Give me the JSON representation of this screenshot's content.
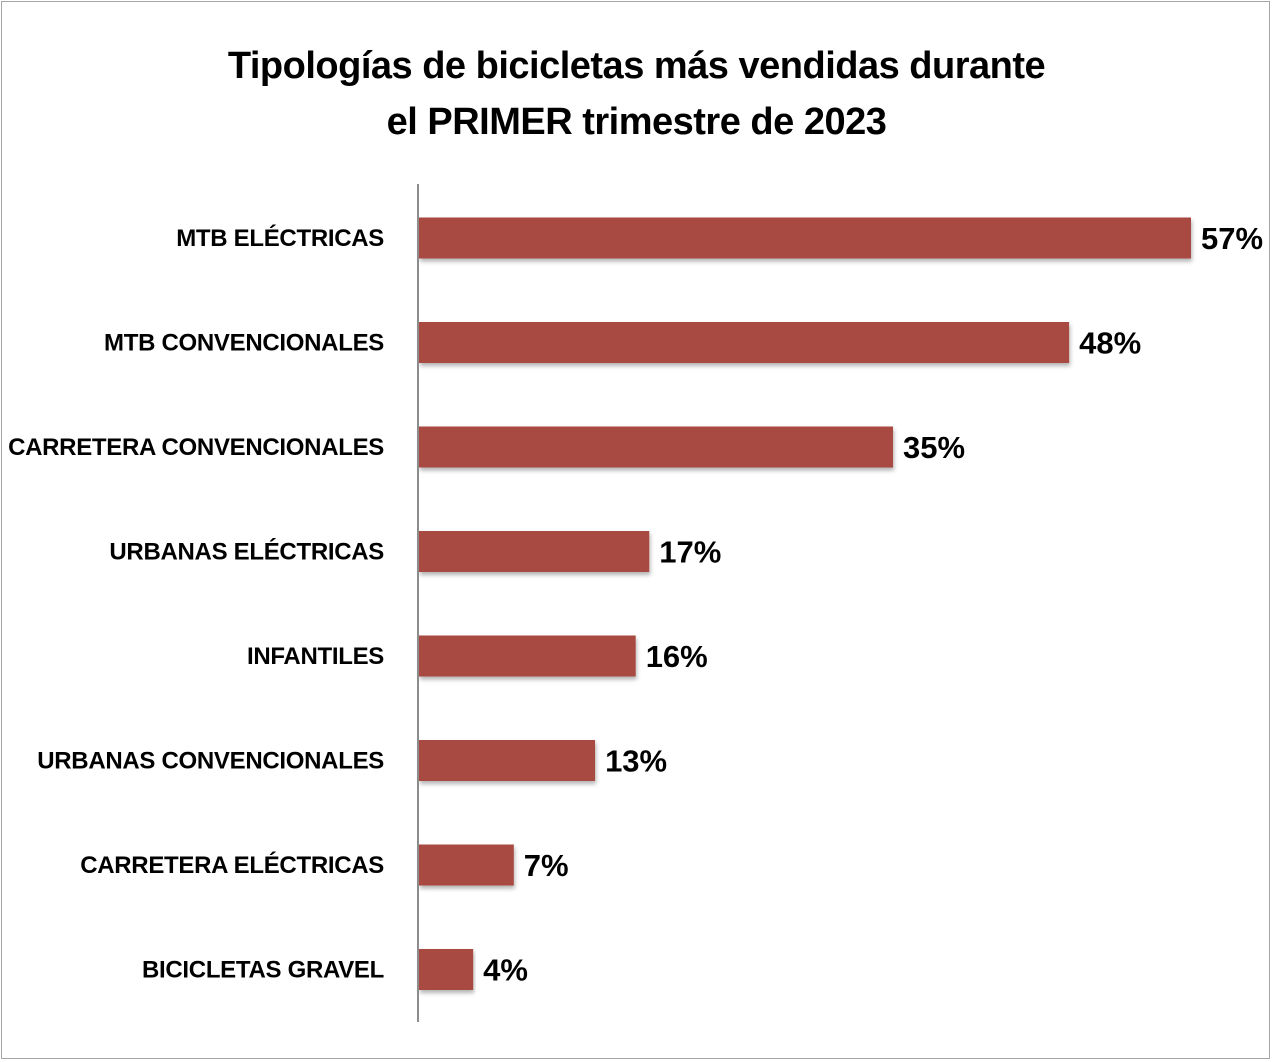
{
  "chart_data": {
    "type": "bar",
    "orientation": "horizontal",
    "title_lines": [
      "Tipologías de bicicletas más vendidas durante",
      "el PRIMER trimestre de 2023"
    ],
    "categories": [
      "MTB ELÉCTRICAS",
      "MTB CONVENCIONALES",
      "CARRETERA CONVENCIONALES",
      "URBANAS ELÉCTRICAS",
      "INFANTILES",
      "URBANAS CONVENCIONALES",
      "CARRETERA ELÉCTRICAS",
      "BICICLETAS GRAVEL"
    ],
    "values": [
      57,
      48,
      35,
      17,
      16,
      13,
      7,
      4
    ],
    "value_labels": [
      "57%",
      "48%",
      "35%",
      "17%",
      "16%",
      "13%",
      "7%",
      "4%"
    ],
    "unit": "%",
    "xlim": [
      0,
      57
    ],
    "grid": false,
    "legend": "none",
    "bar_color": "#a84a42",
    "axis_color": "#8c8c8c"
  }
}
